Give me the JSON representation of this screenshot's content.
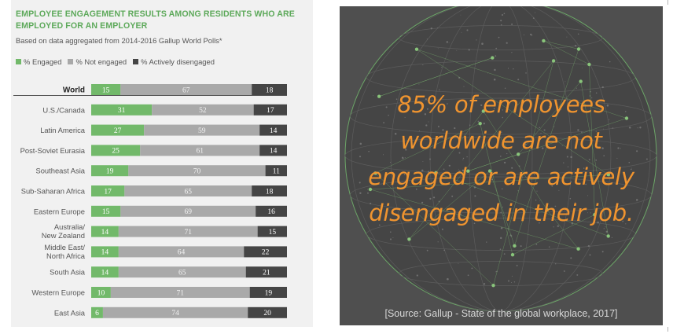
{
  "chart": {
    "title": "EMPLOYEE ENGAGEMENT RESULTS AMONG RESIDENTS WHO ARE EMPLOYED FOR AN EMPLOYER",
    "subtitle": "Based on data aggregated from 2014-2016 Gallup World Polls*",
    "legend": [
      "% Engaged",
      "% Not engaged",
      "% Actively disengaged"
    ],
    "colors": {
      "engaged": "#72b96a",
      "not_engaged": "#a9a9a9",
      "actively_disengaged": "#454545"
    }
  },
  "chart_data": {
    "type": "bar",
    "stacked": true,
    "orientation": "horizontal",
    "title": "EMPLOYEE ENGAGEMENT RESULTS AMONG RESIDENTS WHO ARE EMPLOYED FOR AN EMPLOYER",
    "subtitle": "Based on data aggregated from 2014-2016 Gallup World Polls*",
    "legend_position": "top-left",
    "categories": [
      "World",
      "U.S./Canada",
      "Latin America",
      "Post-Soviet Eurasia",
      "Southeast Asia",
      "Sub-Saharan Africa",
      "Eastern Europe",
      "Australia/ New Zealand",
      "Middle East/ North Africa",
      "South Asia",
      "Western Europe",
      "East Asia"
    ],
    "series": [
      {
        "name": "% Engaged",
        "color": "#72b96a",
        "values": [
          15,
          31,
          27,
          25,
          19,
          17,
          15,
          14,
          14,
          14,
          10,
          6
        ]
      },
      {
        "name": "% Not engaged",
        "color": "#a9a9a9",
        "values": [
          67,
          52,
          59,
          61,
          70,
          65,
          69,
          71,
          64,
          65,
          71,
          74
        ]
      },
      {
        "name": "% Actively disengaged",
        "color": "#454545",
        "values": [
          18,
          17,
          14,
          14,
          11,
          18,
          16,
          15,
          22,
          21,
          19,
          20
        ]
      }
    ]
  },
  "banner": {
    "headline_lines": [
      "85% of employees",
      "worldwide are not",
      "engaged or are actively",
      "disengaged in their job."
    ],
    "source": "[Source: Gallup - State of the global workplace, 2017]"
  }
}
